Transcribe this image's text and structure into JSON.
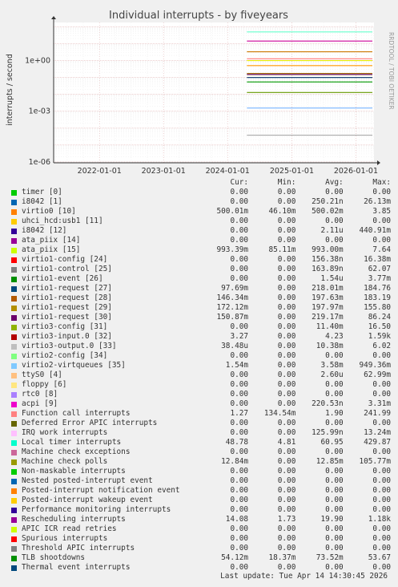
{
  "chart_data": {
    "type": "line",
    "title": "Individual interrupts - by fiveyears",
    "ylabel": "interrupts / second",
    "side_label": "RRDTOOL / TOBI OETIKER",
    "y_scale": "log",
    "y_ticks": [
      "1e-06",
      "1e-03",
      "1e+00"
    ],
    "x_ticks": [
      "2022-01-01",
      "2023-01-01",
      "2024-01-01",
      "2025-01-01",
      "2026-01-01"
    ],
    "grid": true,
    "x_start": "2021-04-15",
    "x_end": "2026-04-14",
    "series_levels": [
      {
        "name": "Local timer interrupts",
        "color": "#66ffcc",
        "start": "2024-04-20",
        "value": 48.78
      },
      {
        "name": "Rescheduling interrupts",
        "color": "#cc0099",
        "start": "2024-04-20",
        "value": 14.08
      },
      {
        "name": "virtio3-input.0 [32]",
        "color": "#cc7700",
        "start": "2024-04-20",
        "value": 3.27
      },
      {
        "name": "Function call interrupts",
        "color": "#ff6666",
        "start": "2024-04-20",
        "value": 1.27
      },
      {
        "name": "ata_piix [15]",
        "color": "#e8e800",
        "start": "2024-04-20",
        "value": 0.99
      },
      {
        "name": "virtio0 [10]",
        "color": "#ff9900",
        "start": "2024-04-20",
        "value": 0.5
      },
      {
        "name": "virtio1-request [29]",
        "color": "#aa7700",
        "start": "2024-04-20",
        "value": 0.172
      },
      {
        "name": "virtio1-request [28]",
        "color": "#996600",
        "start": "2024-04-20",
        "value": 0.146
      },
      {
        "name": "virtio1-request [30]",
        "color": "#660088",
        "start": "2024-04-20",
        "value": 0.151
      },
      {
        "name": "virtio1-request [27]",
        "color": "#003366",
        "start": "2024-04-20",
        "value": 0.0977
      },
      {
        "name": "TLB shootdowns",
        "color": "#009900",
        "start": "2024-04-20",
        "value": 0.0541
      },
      {
        "name": "Machine check polls",
        "color": "#669900",
        "start": "2024-04-20",
        "value": 0.0128
      },
      {
        "name": "virtio2-virtqueues [35]",
        "color": "#66aaff",
        "start": "2024-04-20",
        "value": 0.00154
      },
      {
        "name": "virtio3-output.0 [33]",
        "color": "#aaaaaa",
        "start": "2024-04-20",
        "value": 3.85e-05
      }
    ],
    "legend_columns": [
      "Cur:",
      "Min:",
      "Avg:",
      "Max:"
    ],
    "legend": [
      {
        "color": "#00cc00",
        "name": "timer [0]",
        "cur": "0.00",
        "min": "0.00",
        "avg": "0.00",
        "max": "0.00"
      },
      {
        "color": "#0066b3",
        "name": "i8042 [1]",
        "cur": "0.00",
        "min": "0.00",
        "avg": "250.21n",
        "max": "26.13m"
      },
      {
        "color": "#ff8000",
        "name": "virtio0 [10]",
        "cur": "500.01m",
        "min": "46.10m",
        "avg": "500.02m",
        "max": "3.85"
      },
      {
        "color": "#ffcc00",
        "name": "uhci_hcd:usb1 [11]",
        "cur": "0.00",
        "min": "0.00",
        "avg": "0.00",
        "max": "0.00"
      },
      {
        "color": "#330099",
        "name": "i8042 [12]",
        "cur": "0.00",
        "min": "0.00",
        "avg": "2.11u",
        "max": "440.91m"
      },
      {
        "color": "#990099",
        "name": "ata_piix [14]",
        "cur": "0.00",
        "min": "0.00",
        "avg": "0.00",
        "max": "0.00"
      },
      {
        "color": "#ccff00",
        "name": "ata_piix [15]",
        "cur": "993.39m",
        "min": "85.11m",
        "avg": "993.00m",
        "max": "7.64"
      },
      {
        "color": "#ff0000",
        "name": "virtio1-config [24]",
        "cur": "0.00",
        "min": "0.00",
        "avg": "156.38n",
        "max": "16.38m"
      },
      {
        "color": "#808080",
        "name": "virtio1-control [25]",
        "cur": "0.00",
        "min": "0.00",
        "avg": "163.89n",
        "max": "62.07"
      },
      {
        "color": "#008f00",
        "name": "virtio1-event [26]",
        "cur": "0.00",
        "min": "0.00",
        "avg": "1.54u",
        "max": "3.77m"
      },
      {
        "color": "#00487d",
        "name": "virtio1-request [27]",
        "cur": "97.69m",
        "min": "0.00",
        "avg": "218.01m",
        "max": "184.76"
      },
      {
        "color": "#b35a00",
        "name": "virtio1-request [28]",
        "cur": "146.34m",
        "min": "0.00",
        "avg": "197.63m",
        "max": "183.19"
      },
      {
        "color": "#b38f00",
        "name": "virtio1-request [29]",
        "cur": "172.12m",
        "min": "0.00",
        "avg": "197.97m",
        "max": "155.80"
      },
      {
        "color": "#6b006b",
        "name": "virtio1-request [30]",
        "cur": "150.87m",
        "min": "0.00",
        "avg": "219.17m",
        "max": "86.24"
      },
      {
        "color": "#8fb300",
        "name": "virtio3-config [31]",
        "cur": "0.00",
        "min": "0.00",
        "avg": "11.40m",
        "max": "16.50"
      },
      {
        "color": "#b30000",
        "name": "virtio3-input.0 [32]",
        "cur": "3.27",
        "min": "0.00",
        "avg": "4.23",
        "max": "1.59k"
      },
      {
        "color": "#bebebe",
        "name": "virtio3-output.0 [33]",
        "cur": "38.48u",
        "min": "0.00",
        "avg": "10.38m",
        "max": "6.02"
      },
      {
        "color": "#80ff80",
        "name": "virtio2-config [34]",
        "cur": "0.00",
        "min": "0.00",
        "avg": "0.00",
        "max": "0.00"
      },
      {
        "color": "#80c9ff",
        "name": "virtio2-virtqueues [35]",
        "cur": "1.54m",
        "min": "0.00",
        "avg": "3.58m",
        "max": "949.36m"
      },
      {
        "color": "#ffc080",
        "name": "ttyS0 [4]",
        "cur": "0.00",
        "min": "0.00",
        "avg": "2.60u",
        "max": "62.99m"
      },
      {
        "color": "#ffe680",
        "name": "floppy [6]",
        "cur": "0.00",
        "min": "0.00",
        "avg": "0.00",
        "max": "0.00"
      },
      {
        "color": "#aa80ff",
        "name": "rtc0 [8]",
        "cur": "0.00",
        "min": "0.00",
        "avg": "0.00",
        "max": "0.00"
      },
      {
        "color": "#ee00cc",
        "name": "acpi [9]",
        "cur": "0.00",
        "min": "0.00",
        "avg": "220.53n",
        "max": "3.31m"
      },
      {
        "color": "#ff8080",
        "name": "Function call interrupts",
        "cur": "1.27",
        "min": "134.54m",
        "avg": "1.90",
        "max": "241.99"
      },
      {
        "color": "#666600",
        "name": "Deferred Error APIC interrupts",
        "cur": "0.00",
        "min": "0.00",
        "avg": "0.00",
        "max": "0.00"
      },
      {
        "color": "#ffbfff",
        "name": "IRQ work interrupts",
        "cur": "0.00",
        "min": "0.00",
        "avg": "125.99n",
        "max": "13.24m"
      },
      {
        "color": "#00ffcc",
        "name": "Local timer interrupts",
        "cur": "48.78",
        "min": "4.81",
        "avg": "60.95",
        "max": "429.87"
      },
      {
        "color": "#cc6699",
        "name": "Machine check exceptions",
        "cur": "0.00",
        "min": "0.00",
        "avg": "0.00",
        "max": "0.00"
      },
      {
        "color": "#999900",
        "name": "Machine check polls",
        "cur": "12.84m",
        "min": "0.00",
        "avg": "12.85m",
        "max": "105.77m"
      },
      {
        "color": "#00cc00",
        "name": "Non-maskable interrupts",
        "cur": "0.00",
        "min": "0.00",
        "avg": "0.00",
        "max": "0.00"
      },
      {
        "color": "#0066b3",
        "name": "Nested posted-interrupt event",
        "cur": "0.00",
        "min": "0.00",
        "avg": "0.00",
        "max": "0.00"
      },
      {
        "color": "#ff8000",
        "name": "Posted-interrupt notification event",
        "cur": "0.00",
        "min": "0.00",
        "avg": "0.00",
        "max": "0.00"
      },
      {
        "color": "#ffcc00",
        "name": "Posted-interrupt wakeup event",
        "cur": "0.00",
        "min": "0.00",
        "avg": "0.00",
        "max": "0.00"
      },
      {
        "color": "#330099",
        "name": "Performance monitoring interrupts",
        "cur": "0.00",
        "min": "0.00",
        "avg": "0.00",
        "max": "0.00"
      },
      {
        "color": "#990099",
        "name": "Rescheduling interrupts",
        "cur": "14.08",
        "min": "1.73",
        "avg": "19.90",
        "max": "1.18k"
      },
      {
        "color": "#ccff00",
        "name": "APIC ICR read retries",
        "cur": "0.00",
        "min": "0.00",
        "avg": "0.00",
        "max": "0.00"
      },
      {
        "color": "#ff0000",
        "name": "Spurious interrupts",
        "cur": "0.00",
        "min": "0.00",
        "avg": "0.00",
        "max": "0.00"
      },
      {
        "color": "#808080",
        "name": "Threshold APIC interrupts",
        "cur": "0.00",
        "min": "0.00",
        "avg": "0.00",
        "max": "0.00"
      },
      {
        "color": "#008f00",
        "name": "TLB shootdowns",
        "cur": "54.12m",
        "min": "18.37m",
        "avg": "73.52m",
        "max": "53.67"
      },
      {
        "color": "#00487d",
        "name": "Thermal event interrupts",
        "cur": "0.00",
        "min": "0.00",
        "avg": "0.00",
        "max": "0.00"
      }
    ]
  },
  "footer": "Last update: Tue Apr 14 14:30:45 2026"
}
